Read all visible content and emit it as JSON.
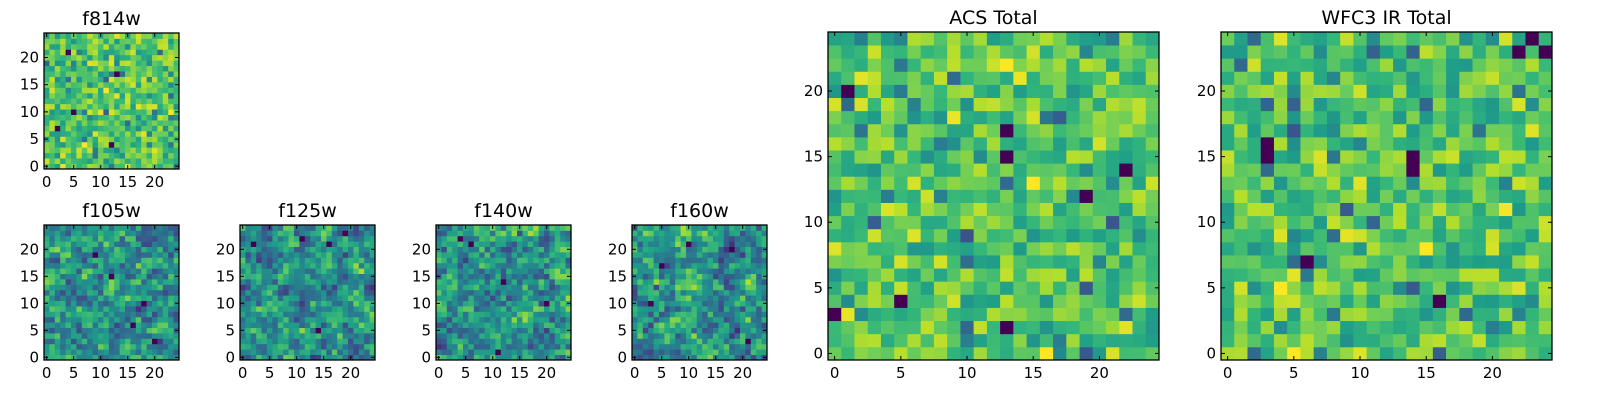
{
  "figure": {
    "colormap": "viridis",
    "colors": {
      "dark": "#440154",
      "mid_blue": "#31688e",
      "teal": "#21918c",
      "green": "#35b779",
      "light_green": "#90d743",
      "yellow": "#fde725"
    }
  },
  "chart_data": [
    {
      "type": "heatmap",
      "name": "f814w",
      "title": "f814w",
      "grid": [
        25,
        25
      ],
      "xlim": [
        0,
        24
      ],
      "ylim": [
        0,
        24
      ],
      "xticks": [
        0,
        5,
        10,
        15,
        20
      ],
      "xtick_labels": [
        "0",
        "5",
        "10",
        "15",
        "20"
      ],
      "yticks": [
        0,
        5,
        10,
        15,
        20
      ],
      "ytick_labels": [
        "0",
        "5",
        "10",
        "15",
        "20"
      ],
      "seed": 814,
      "smooth": false,
      "low_spots": [
        [
          13,
          17
        ],
        [
          12,
          4
        ],
        [
          5,
          10
        ],
        [
          2,
          7
        ],
        [
          4,
          21
        ]
      ]
    },
    {
      "type": "heatmap",
      "name": "f105w",
      "title": "f105w",
      "grid": [
        25,
        25
      ],
      "xlim": [
        0,
        24
      ],
      "ylim": [
        0,
        24
      ],
      "xticks": [
        0,
        5,
        10,
        15,
        20
      ],
      "xtick_labels": [
        "0",
        "5",
        "10",
        "15",
        "20"
      ],
      "yticks": [
        0,
        5,
        10,
        15,
        20
      ],
      "ytick_labels": [
        "0",
        "5",
        "10",
        "15",
        "20"
      ],
      "seed": 105,
      "smooth": true,
      "low_spots": [
        [
          16,
          6
        ],
        [
          18,
          10
        ],
        [
          9,
          19
        ],
        [
          12,
          15
        ],
        [
          20,
          3
        ]
      ]
    },
    {
      "type": "heatmap",
      "name": "f125w",
      "title": "f125w",
      "grid": [
        25,
        25
      ],
      "xlim": [
        0,
        24
      ],
      "ylim": [
        0,
        24
      ],
      "xticks": [
        0,
        5,
        10,
        15,
        20
      ],
      "xtick_labels": [
        "0",
        "5",
        "10",
        "15",
        "20"
      ],
      "yticks": [
        0,
        5,
        10,
        15,
        20
      ],
      "ytick_labels": [
        "0",
        "5",
        "10",
        "15",
        "20"
      ],
      "seed": 125,
      "smooth": true,
      "low_spots": [
        [
          2,
          21
        ],
        [
          11,
          22
        ],
        [
          19,
          23
        ],
        [
          14,
          5
        ],
        [
          16,
          21
        ]
      ]
    },
    {
      "type": "heatmap",
      "name": "f140w",
      "title": "f140w",
      "grid": [
        25,
        25
      ],
      "xlim": [
        0,
        24
      ],
      "ylim": [
        0,
        24
      ],
      "xticks": [
        0,
        5,
        10,
        15,
        20
      ],
      "xtick_labels": [
        "0",
        "5",
        "10",
        "15",
        "20"
      ],
      "yticks": [
        0,
        5,
        10,
        15,
        20
      ],
      "ytick_labels": [
        "0",
        "5",
        "10",
        "15",
        "20"
      ],
      "seed": 140,
      "smooth": true,
      "low_spots": [
        [
          11,
          1
        ],
        [
          12,
          14
        ],
        [
          20,
          10
        ],
        [
          6,
          21
        ],
        [
          4,
          22
        ]
      ]
    },
    {
      "type": "heatmap",
      "name": "f160w",
      "title": "f160w",
      "grid": [
        25,
        25
      ],
      "xlim": [
        0,
        24
      ],
      "ylim": [
        0,
        24
      ],
      "xticks": [
        0,
        5,
        10,
        15,
        20
      ],
      "xtick_labels": [
        "0",
        "5",
        "10",
        "15",
        "20"
      ],
      "yticks": [
        0,
        5,
        10,
        15,
        20
      ],
      "ytick_labels": [
        "0",
        "5",
        "10",
        "15",
        "20"
      ],
      "seed": 160,
      "smooth": true,
      "low_spots": [
        [
          21,
          3
        ],
        [
          10,
          21
        ],
        [
          5,
          17
        ],
        [
          3,
          10
        ],
        [
          18,
          20
        ]
      ]
    },
    {
      "type": "heatmap",
      "name": "acs-total",
      "title": "ACS Total",
      "grid": [
        25,
        25
      ],
      "xlim": [
        0,
        24
      ],
      "ylim": [
        0,
        24
      ],
      "xticks": [
        0,
        5,
        10,
        15,
        20
      ],
      "xtick_labels": [
        "0",
        "5",
        "10",
        "15",
        "20"
      ],
      "yticks": [
        0,
        5,
        10,
        15,
        20
      ],
      "ytick_labels": [
        "0",
        "5",
        "10",
        "15",
        "20"
      ],
      "seed": 777,
      "smooth": false,
      "low_spots": [
        [
          22,
          14
        ],
        [
          13,
          15
        ],
        [
          13,
          2
        ],
        [
          5,
          4
        ],
        [
          0,
          3
        ],
        [
          1,
          20
        ],
        [
          19,
          12
        ],
        [
          13,
          17
        ]
      ]
    },
    {
      "type": "heatmap",
      "name": "wfc3-ir-total",
      "title": "WFC3 IR Total",
      "grid": [
        25,
        25
      ],
      "xlim": [
        0,
        24
      ],
      "ylim": [
        0,
        24
      ],
      "xticks": [
        0,
        5,
        10,
        15,
        20
      ],
      "xtick_labels": [
        "0",
        "5",
        "10",
        "15",
        "20"
      ],
      "yticks": [
        0,
        5,
        10,
        15,
        20
      ],
      "ytick_labels": [
        "0",
        "5",
        "10",
        "15",
        "20"
      ],
      "seed": 999,
      "smooth": false,
      "low_spots": [
        [
          16,
          4
        ],
        [
          14,
          14
        ],
        [
          14,
          15
        ],
        [
          3,
          15
        ],
        [
          3,
          16
        ],
        [
          22,
          23
        ],
        [
          24,
          23
        ],
        [
          6,
          7
        ],
        [
          23,
          24
        ]
      ]
    }
  ]
}
